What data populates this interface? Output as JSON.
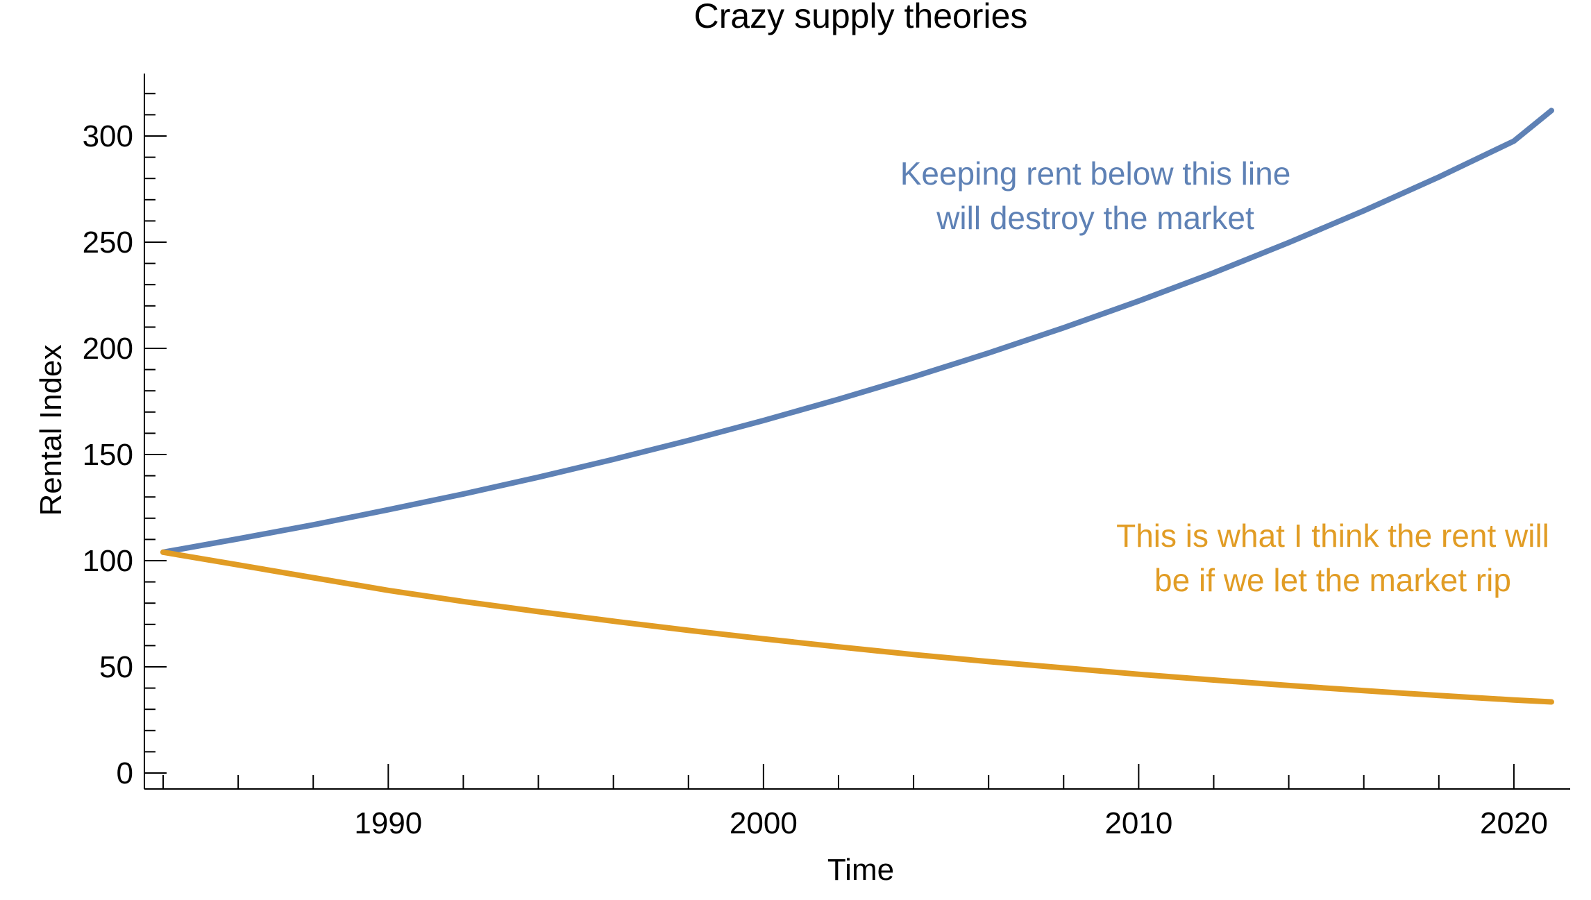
{
  "chart_data": {
    "type": "line",
    "title": "Crazy supply theories",
    "xlabel": "Time",
    "ylabel": "Rental Index",
    "xlim": [
      1983.5,
      2021.5
    ],
    "ylim": [
      0,
      330
    ],
    "x_ticks": [
      1990,
      2000,
      2010,
      2020
    ],
    "y_ticks": [
      0,
      50,
      100,
      150,
      200,
      250,
      300
    ],
    "grid": false,
    "series": [
      {
        "color": "#5e81b5",
        "x": [
          1984,
          1986,
          1988,
          1990,
          1992,
          1994,
          1996,
          1998,
          2000,
          2002,
          2004,
          2006,
          2008,
          2010,
          2012,
          2014,
          2016,
          2018,
          2020,
          2021
        ],
        "values": [
          104,
          110.3,
          116.9,
          124,
          131.4,
          139.3,
          147.7,
          156.6,
          166,
          176,
          186.6,
          197.8,
          209.7,
          222.3,
          235.6,
          249.8,
          264.8,
          280.7,
          297.6,
          312
        ]
      },
      {
        "color": "#e19c24",
        "x": [
          1984,
          1986,
          1988,
          1990,
          1992,
          1994,
          1996,
          1998,
          2000,
          2002,
          2004,
          2006,
          2008,
          2010,
          2012,
          2014,
          2016,
          2018,
          2020,
          2021
        ],
        "values": [
          104,
          98,
          92,
          86,
          80.8,
          76,
          71.5,
          67.2,
          63.2,
          59.4,
          55.8,
          52.5,
          49.5,
          46.5,
          43.8,
          41.2,
          38.8,
          36.5,
          34.4,
          33.5
        ]
      }
    ],
    "annotations": [
      {
        "lines": [
          "Keeping rent below this line",
          "will destroy the market"
        ],
        "color": "#5e81b5"
      },
      {
        "lines": [
          "This is what I think the rent will",
          "be if we let the market rip"
        ],
        "color": "#e19c24"
      }
    ]
  }
}
